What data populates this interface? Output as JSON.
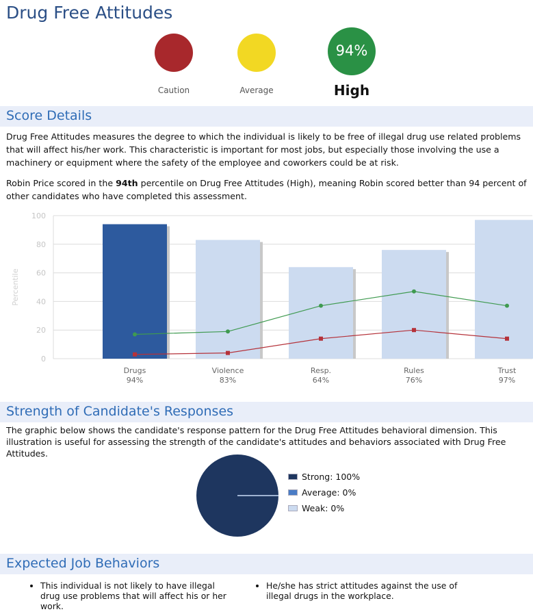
{
  "page_title": "Drug Free Attitudes",
  "indicators": {
    "caution_label": "Caution",
    "average_label": "Average",
    "high_label": "High",
    "score_text": "94%",
    "colors": {
      "caution": "#a8282c",
      "average": "#f2d823",
      "high": "#2a9145"
    }
  },
  "score_details": {
    "heading": "Score Details",
    "paragraph1": "Drug Free Attitudes measures the degree to which the individual is likely to be free of illegal drug use related problems that will affect his/her work. This characteristic is important for most jobs, but especially those involving the use a machinery or equipment where the safety of the employee and coworkers could be at risk.",
    "p2_before": "Robin Price scored in the ",
    "p2_bold": "94th",
    "p2_after": " percentile on Drug Free Attitudes (High), meaning Robin scored better than 94 percent of other candidates who have completed this assessment."
  },
  "chart_data": {
    "type": "bar",
    "categories": [
      "Drugs",
      "Violence",
      "Resp.",
      "Rules",
      "Trust"
    ],
    "sublabels": [
      "94%",
      "83%",
      "64%",
      "76%",
      "97%"
    ],
    "values": [
      94,
      83,
      64,
      76,
      97
    ],
    "highlight_index": 0,
    "ylabel": "Percentile",
    "ylim": [
      0,
      100
    ],
    "yticks": [
      "0",
      "20",
      "40",
      "60",
      "80",
      "100"
    ],
    "grid": true,
    "lines": [
      {
        "color": "#3f9a50",
        "values": [
          17,
          19,
          37,
          47,
          37
        ]
      },
      {
        "color": "#b5323a",
        "values": [
          3,
          4,
          14,
          20,
          14
        ]
      }
    ],
    "colors": {
      "highlight": "#2d5a9e",
      "bar": "#ccdbf0"
    }
  },
  "strength": {
    "heading": "Strength of Candidate's Responses",
    "paragraph": "The graphic below shows the candidate's response pattern for the Drug Free Attitudes behavioral dimension. This illustration is useful for assessing the strength of the candidate's attitudes and behaviors associated with Drug Free Attitudes.",
    "pie": {
      "type": "pie",
      "slices": [
        {
          "label": "Strong: 100%",
          "value": 100,
          "color": "#1e365f"
        },
        {
          "label": "Average: 0%",
          "value": 0,
          "color": "#4a7dc6"
        },
        {
          "label": "Weak: 0%",
          "value": 0,
          "color": "#ccdbf0"
        }
      ]
    }
  },
  "expected": {
    "heading": "Expected Job Behaviors",
    "items": [
      "This individual is not likely to have illegal drug use problems that will affect his or her work.",
      "He/she has strict attitudes against the use of illegal drugs in the workplace."
    ]
  }
}
